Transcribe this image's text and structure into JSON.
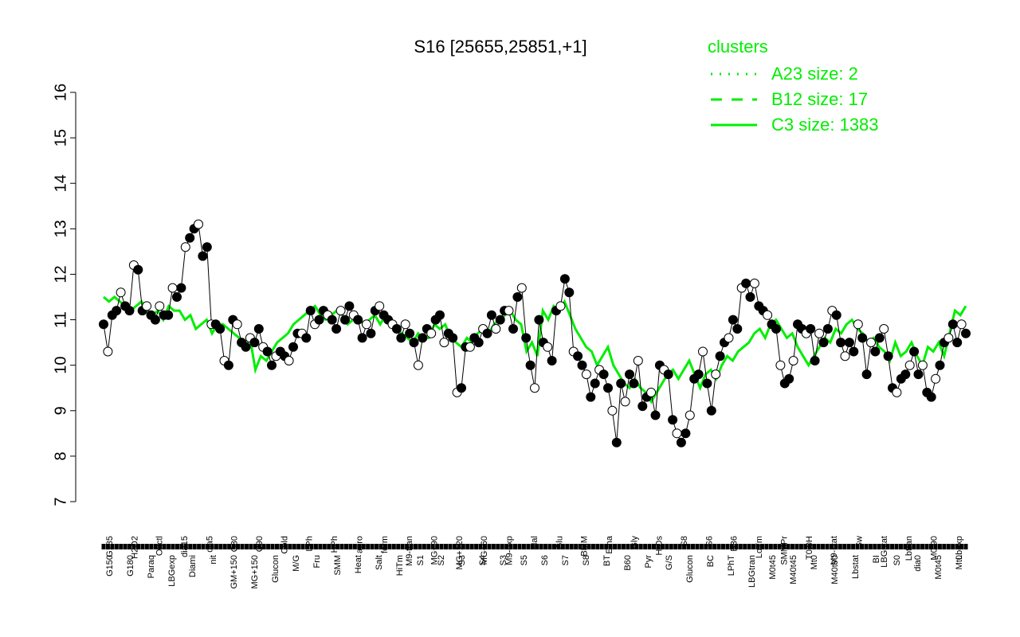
{
  "chart_data": {
    "type": "line",
    "title": "S16 [25655,25851,+1]",
    "xlabel": "",
    "ylabel": "",
    "ylim": [
      7,
      16
    ],
    "yticks": [
      7,
      8,
      9,
      10,
      11,
      12,
      13,
      14,
      15,
      16
    ],
    "legend": {
      "title": "clusters",
      "position": "top-right",
      "color": "#00ee00",
      "entries": [
        {
          "label": "A23 size: 2",
          "style": "dotted"
        },
        {
          "label": "B12 size: 17",
          "style": "dashed"
        },
        {
          "label": "C3 size: 1383",
          "style": "solid"
        }
      ]
    },
    "x_labels_bottom": [
      "G150",
      "G180",
      "Paraq",
      "LBGexp",
      "Diami",
      "nit",
      "GM+150",
      "MG+150",
      "Glucon",
      "M/G",
      "Fru",
      "SMM",
      "Heat",
      "Salt",
      "HiTm",
      "S1",
      "S2",
      "S3",
      "S4",
      "S3",
      "S5",
      "S6",
      "S7",
      "S8",
      "BT",
      "B60",
      "Pyr",
      "G/S",
      "Glucon",
      "BC",
      "LPhT",
      "LBGtran",
      "M0t45",
      "M40t45",
      "Mt0",
      "M40t90",
      "Lbstat",
      "BI",
      "S0",
      "dia0",
      "M0t45",
      "Mt0"
    ],
    "x_labels_top": [
      "G135",
      "H2O2",
      "Oxctl",
      "dia15",
      "dia5",
      "C30",
      "C90",
      "Cold",
      "LPh",
      "HPh",
      "aero",
      "ferm",
      "M9-tran",
      "MG+90",
      "MG+120",
      "MG+60",
      "M9-exp",
      "Mal",
      "Glu",
      "BMM",
      "Etha",
      "Gly",
      "HiOs",
      "S8",
      "S6",
      "B36",
      "LoTm",
      "SMMPr",
      "T0.0H",
      "M9-stat",
      "Sw",
      "LBGstat",
      "Lbtran",
      "M0t90",
      "Lbexp"
    ],
    "series": [
      {
        "style": "solid",
        "color": "#00ee00",
        "values": [
          11.5,
          11.4,
          11.5,
          11.4,
          11.3,
          11.2,
          11.3,
          11.4,
          11.2,
          11.1,
          11.2,
          11.0,
          11.3,
          11.2,
          11.2,
          11.0,
          11.1,
          10.8,
          10.9,
          11.0,
          10.7,
          10.9,
          10.9,
          10.8,
          10.7,
          10.6,
          10.5,
          10.6,
          9.9,
          10.2,
          10.1,
          10.3,
          10.5,
          10.6,
          10.7,
          10.9,
          11.0,
          11.1,
          11.2,
          11.3,
          11.1,
          11.0,
          11.1,
          11.2,
          11.1,
          10.9,
          11.0,
          11.0,
          10.9,
          11.0,
          11.1,
          10.9,
          11.1,
          10.9,
          10.8,
          10.7,
          10.6,
          10.5,
          10.7,
          10.6,
          10.6,
          10.9,
          10.8,
          10.9,
          10.6,
          10.5,
          10.4,
          10.6,
          10.5,
          10.7,
          10.8,
          10.7,
          10.9,
          11.0,
          11.1,
          11.2,
          11.0,
          10.9,
          10.3,
          10.5,
          10.2,
          11.2,
          11.0,
          11.3,
          11.2,
          11.4,
          11.1,
          10.8,
          10.6,
          10.4,
          10.3,
          10.0,
          10.2,
          10.4,
          10.0,
          9.8,
          9.6,
          9.5,
          9.7,
          9.5,
          9.4,
          9.2,
          9.4,
          9.6,
          9.8,
          9.9,
          9.7,
          9.9,
          10.1,
          9.8,
          9.5,
          9.8,
          9.9,
          9.7,
          10.0,
          10.2,
          10.1,
          10.3,
          10.4,
          10.5,
          10.7,
          10.8,
          10.6,
          10.9,
          11.0,
          10.8,
          10.6,
          10.7,
          10.4,
          10.2,
          10.0,
          10.2,
          10.4,
          10.6,
          10.5,
          10.8,
          10.7,
          10.9,
          11.0,
          10.8,
          10.7,
          10.5,
          10.6,
          10.4,
          10.3,
          10.1,
          10.5,
          10.2,
          10.3,
          10.5,
          10.2,
          10.0,
          10.4,
          10.3,
          10.5,
          10.2,
          10.7,
          11.2,
          11.1,
          11.3
        ]
      },
      {
        "style": "points",
        "color": "#000000",
        "values": [
          10.9,
          10.3,
          11.1,
          11.2,
          11.6,
          11.3,
          11.2,
          12.2,
          12.1,
          11.2,
          11.3,
          11.1,
          11.0,
          11.3,
          11.1,
          11.1,
          11.7,
          11.5,
          11.7,
          12.6,
          12.8,
          13.0,
          13.1,
          12.4,
          12.6,
          10.9,
          10.9,
          10.8,
          10.1,
          10.0,
          11.0,
          10.9,
          10.5,
          10.4,
          10.6,
          10.5,
          10.8,
          10.4,
          10.3,
          10.0,
          10.2,
          10.3,
          10.2,
          10.1,
          10.4,
          10.7,
          10.7,
          10.6,
          11.2,
          10.9,
          11.0,
          11.2,
          11.1,
          11.0,
          10.8,
          11.2,
          11.0,
          11.3,
          11.1,
          11.0,
          10.6,
          10.9,
          10.7,
          11.2,
          11.3,
          11.1,
          11.0,
          10.9,
          10.8,
          10.6,
          10.9,
          10.7,
          10.5,
          10.0,
          10.6,
          10.8,
          10.7,
          11.0,
          11.1,
          10.5,
          10.7,
          10.6,
          9.4,
          9.5,
          10.4,
          10.4,
          10.6,
          10.5,
          10.8,
          10.7,
          11.1,
          10.8,
          11.0,
          11.2,
          11.2,
          10.8,
          11.5,
          11.7,
          10.6,
          10.0,
          9.5,
          11.0,
          10.5,
          10.4,
          10.1,
          11.2,
          11.3,
          11.9,
          11.6,
          10.3,
          10.2,
          10.0,
          9.8,
          9.3,
          9.6,
          9.9,
          9.8,
          9.5,
          9.0,
          8.3,
          9.6,
          9.2,
          9.8,
          9.6,
          10.1,
          9.1,
          9.3,
          9.4,
          8.9,
          10.0,
          9.9,
          9.8,
          8.8,
          8.5,
          8.3,
          8.5,
          8.9,
          9.7,
          9.8,
          10.3,
          9.6,
          9.0,
          9.8,
          10.2,
          10.5,
          10.6,
          11.0,
          10.8,
          11.7,
          11.8,
          11.5,
          11.8,
          11.3,
          11.2,
          11.1,
          10.9,
          10.8,
          10.0,
          9.6,
          9.7,
          10.1,
          10.9,
          10.8,
          10.7,
          10.8,
          10.1,
          10.7,
          10.5,
          10.8,
          11.2,
          11.1,
          10.5,
          10.2,
          10.5,
          10.3,
          10.9,
          10.6,
          9.8,
          10.5,
          10.3,
          10.6,
          10.8,
          10.2,
          9.5,
          9.4,
          9.7,
          9.8,
          10.0,
          10.3,
          9.8,
          10.0,
          9.4,
          9.3,
          9.7,
          10.0,
          10.5,
          10.6,
          10.9,
          10.5,
          10.9,
          10.7
        ]
      }
    ]
  }
}
